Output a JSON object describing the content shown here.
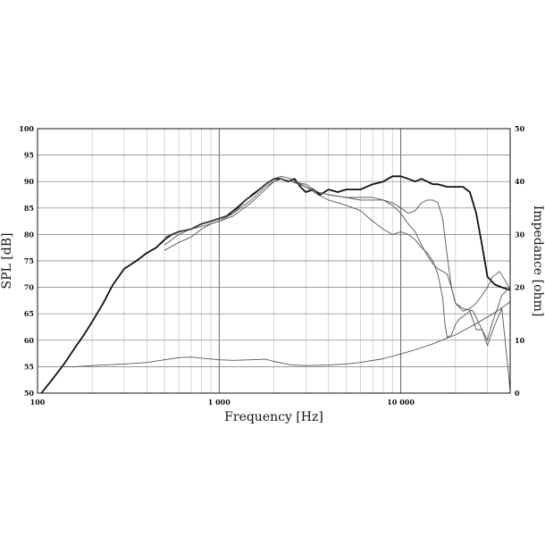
{
  "chart_data": {
    "type": "line",
    "xlabel": "Frequency [Hz]",
    "ylabel": "SPL [dB]",
    "y2label": "Impedance [ohm]",
    "xscale": "log",
    "xlim": [
      100,
      40000
    ],
    "ylim": [
      50,
      100
    ],
    "y2lim": [
      0,
      50
    ],
    "grid": true,
    "x_tick_labels": [
      {
        "value": 100,
        "label": "100"
      },
      {
        "value": 1000,
        "label": "1 000"
      },
      {
        "value": 10000,
        "label": "10 000"
      }
    ],
    "y_tick_labels": [
      "50",
      "55",
      "60",
      "65",
      "70",
      "75",
      "80",
      "85",
      "90",
      "95",
      "100"
    ],
    "y2_tick_labels": [
      "0",
      "10",
      "20",
      "30",
      "40",
      "50"
    ],
    "series": [
      {
        "axis": "spl",
        "style": "bold",
        "x": [
          105,
          120,
          140,
          160,
          180,
          200,
          230,
          260,
          300,
          350,
          400,
          450,
          500,
          550,
          600,
          700,
          800,
          900,
          1000,
          1100,
          1200,
          1300,
          1400,
          1600,
          1800,
          2000,
          2200,
          2400,
          2600,
          2800,
          3000,
          3300,
          3600,
          4000,
          4500,
          5000,
          6000,
          7000,
          8000,
          9000,
          10000,
          11000,
          12000,
          13000,
          14000,
          15000,
          16000,
          18000,
          20000,
          22000,
          24000,
          26000,
          28000,
          30000,
          33000,
          36000,
          40000
        ],
        "y": [
          50,
          52.5,
          55.5,
          58.5,
          61,
          63.5,
          67,
          70.5,
          73.5,
          75,
          76.5,
          77.5,
          79,
          80,
          80.5,
          81,
          82,
          82.5,
          83,
          83.5,
          84.5,
          85.5,
          86.5,
          88,
          89.5,
          90.5,
          90.5,
          90,
          90.5,
          89,
          88,
          88.5,
          87.5,
          88.5,
          88,
          88.5,
          88.5,
          89.5,
          90,
          91,
          91,
          90.5,
          90,
          90.5,
          90,
          89.5,
          89.5,
          89,
          89,
          89,
          88,
          84,
          78,
          72,
          70.5,
          70,
          69.5
        ]
      },
      {
        "axis": "spl",
        "style": "thin",
        "x": [
          500,
          600,
          700,
          800,
          900,
          1000,
          1200,
          1500,
          1800,
          2000,
          2200,
          2500,
          3000,
          3500,
          4000,
          5000,
          6000,
          7000,
          8000,
          9000,
          10000,
          11000,
          12000,
          13000,
          14000,
          15000,
          16000,
          17000,
          18000,
          19000,
          20000,
          22000,
          25000,
          28000,
          30000,
          33000,
          36000,
          40000
        ],
        "y": [
          78,
          80,
          81,
          81.5,
          82,
          82.5,
          83.5,
          86,
          88.5,
          90,
          90.5,
          90,
          89.5,
          88,
          87.5,
          87,
          86.5,
          86.5,
          86.5,
          86,
          85,
          84,
          84.5,
          86,
          86.5,
          86.5,
          86,
          83,
          76,
          70,
          67,
          66,
          65.5,
          62,
          59,
          63,
          66,
          50.5
        ]
      },
      {
        "axis": "spl",
        "style": "thin",
        "x": [
          500,
          600,
          700,
          800,
          900,
          1000,
          1200,
          1500,
          1800,
          2000,
          2200,
          2500,
          3000,
          3500,
          4000,
          4500,
          5000,
          6000,
          7000,
          8000,
          9000,
          10000,
          11000,
          12000,
          13000,
          14000,
          15000,
          16000,
          17000,
          17500,
          18000,
          19000,
          20000,
          21000,
          22000,
          23000,
          24000,
          26000,
          28000,
          30000,
          32000,
          34000,
          36000,
          40000
        ],
        "y": [
          77,
          78.5,
          79.5,
          81,
          82,
          82.5,
          84,
          87.5,
          89.5,
          90.5,
          91,
          90.5,
          89,
          87.5,
          86.5,
          86,
          85.5,
          84.5,
          82.5,
          81,
          80,
          80.5,
          80,
          79,
          77.5,
          76.5,
          75,
          72.5,
          68,
          63,
          60.5,
          61,
          63,
          64,
          64.5,
          65,
          65.5,
          62,
          62,
          60,
          63.5,
          66,
          68.5,
          70
        ]
      },
      {
        "axis": "spl",
        "style": "thin",
        "x": [
          500,
          600,
          700,
          800,
          900,
          1000,
          1200,
          1500,
          1800,
          2000,
          2200,
          2500,
          3000,
          3500,
          4000,
          5000,
          6000,
          7000,
          8000,
          9000,
          10000,
          11000,
          12000,
          13000,
          14000,
          15000,
          16000,
          17000,
          18000,
          19000,
          20000,
          22000,
          24000,
          26000,
          28000,
          30000,
          32000,
          35000,
          38000,
          40000
        ],
        "y": [
          79.5,
          80.5,
          81,
          82,
          82.5,
          83,
          84,
          86.5,
          89,
          90,
          90.5,
          90,
          89,
          88,
          87.5,
          87,
          87,
          87,
          86.5,
          85.5,
          84,
          82,
          80.5,
          78,
          76,
          74.5,
          73.5,
          73,
          72.5,
          70,
          67,
          65.5,
          66,
          67,
          68.5,
          70,
          72,
          73,
          71,
          69.5
        ]
      },
      {
        "axis": "impedance",
        "style": "thin",
        "x": [
          140,
          160,
          200,
          300,
          400,
          500,
          600,
          700,
          800,
          1000,
          1200,
          1500,
          1800,
          2000,
          2500,
          3000,
          4000,
          5000,
          6000,
          8000,
          10000,
          12000,
          15000,
          18000,
          20000,
          25000,
          30000,
          35000,
          40000
        ],
        "y": [
          5,
          5,
          5.2,
          5.5,
          5.8,
          6.3,
          6.7,
          6.8,
          6.6,
          6.3,
          6.2,
          6.3,
          6.4,
          6,
          5.3,
          5.2,
          5.3,
          5.5,
          5.8,
          6.5,
          7.4,
          8.2,
          9.3,
          10.4,
          11,
          12.8,
          14.4,
          15.8,
          17.3
        ]
      }
    ]
  }
}
